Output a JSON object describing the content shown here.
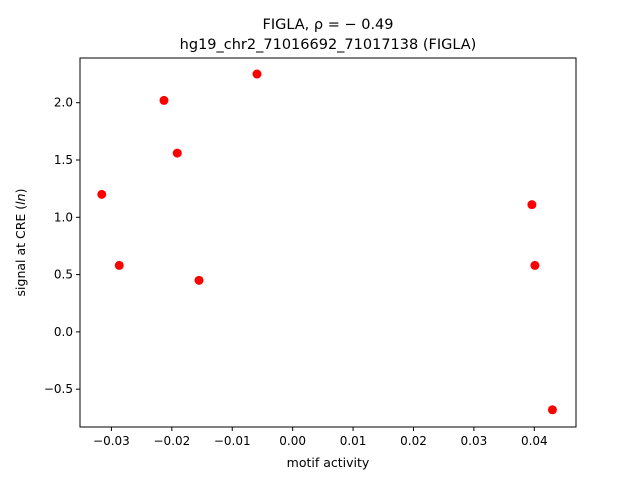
{
  "chart_data": {
    "type": "scatter",
    "title_line1": "FIGLA, ρ = − 0.49",
    "title_line2": "hg19_chr2_71016692_71017138 (FIGLA)",
    "xlabel": "motif activity",
    "ylabel": "signal at CRE (ln)",
    "xlim": [
      -0.0352,
      0.0469
    ],
    "ylim": [
      -0.83,
      2.39
    ],
    "x_ticks": [
      -0.03,
      -0.02,
      -0.01,
      0.0,
      0.01,
      0.02,
      0.03,
      0.04
    ],
    "x_tick_labels": [
      "−0.03",
      "−0.02",
      "−0.01",
      "0.00",
      "0.01",
      "0.02",
      "0.03",
      "0.04"
    ],
    "y_ticks": [
      -0.5,
      0.0,
      0.5,
      1.0,
      1.5,
      2.0
    ],
    "y_tick_labels": [
      "−0.5",
      "0.0",
      "0.5",
      "1.0",
      "1.5",
      "2.0"
    ],
    "grid": false,
    "marker_color": "#ff0000",
    "points": [
      {
        "x": -0.0316,
        "y": 1.2
      },
      {
        "x": -0.0287,
        "y": 0.58
      },
      {
        "x": -0.0213,
        "y": 2.02
      },
      {
        "x": -0.0191,
        "y": 1.56
      },
      {
        "x": -0.0155,
        "y": 0.45
      },
      {
        "x": -0.0059,
        "y": 2.25
      },
      {
        "x": 0.0396,
        "y": 1.11
      },
      {
        "x": 0.0401,
        "y": 0.58
      },
      {
        "x": 0.043,
        "y": -0.68
      }
    ]
  }
}
